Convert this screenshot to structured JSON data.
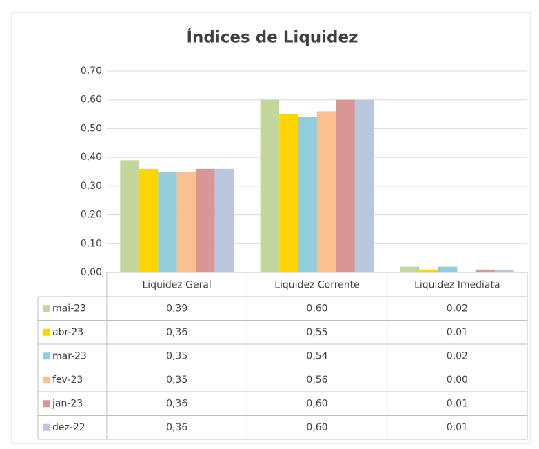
{
  "chart_data": {
    "type": "bar",
    "title": "Índices de Liquidez",
    "categories": [
      "Liquidez Geral",
      "Liquidez Corrente",
      "Liquidez Imediata"
    ],
    "series": [
      {
        "name": "mai-23",
        "color": "#c3d69b",
        "values": [
          0.39,
          0.6,
          0.02
        ],
        "value_labels": [
          "0,39",
          "0,60",
          "0,02"
        ]
      },
      {
        "name": "abr-23",
        "color": "#ffd500",
        "values": [
          0.36,
          0.55,
          0.01
        ],
        "value_labels": [
          "0,36",
          "0,55",
          "0,01"
        ]
      },
      {
        "name": "mar-23",
        "color": "#92cddc",
        "values": [
          0.35,
          0.54,
          0.02
        ],
        "value_labels": [
          "0,35",
          "0,54",
          "0,02"
        ]
      },
      {
        "name": "fev-23",
        "color": "#fac090",
        "values": [
          0.35,
          0.56,
          0.0
        ],
        "value_labels": [
          "0,35",
          "0,56",
          "0,00"
        ]
      },
      {
        "name": "jan-23",
        "color": "#d99694",
        "values": [
          0.36,
          0.6,
          0.01
        ],
        "value_labels": [
          "0,36",
          "0,60",
          "0,01"
        ]
      },
      {
        "name": "dez-22",
        "color": "#b9c6de",
        "values": [
          0.36,
          0.6,
          0.01
        ],
        "value_labels": [
          "0,36",
          "0,60",
          "0,01"
        ]
      }
    ],
    "ylim": [
      0,
      0.7
    ],
    "yticks": [
      {
        "value": 0,
        "label": "0,00"
      },
      {
        "value": 0.1,
        "label": "0,10"
      },
      {
        "value": 0.2,
        "label": "0,20"
      },
      {
        "value": 0.3,
        "label": "0,30"
      },
      {
        "value": 0.4,
        "label": "0,40"
      },
      {
        "value": 0.5,
        "label": "0,50"
      },
      {
        "value": 0.6,
        "label": "0,60"
      },
      {
        "value": 0.7,
        "label": "0,70"
      }
    ],
    "grid": true
  }
}
